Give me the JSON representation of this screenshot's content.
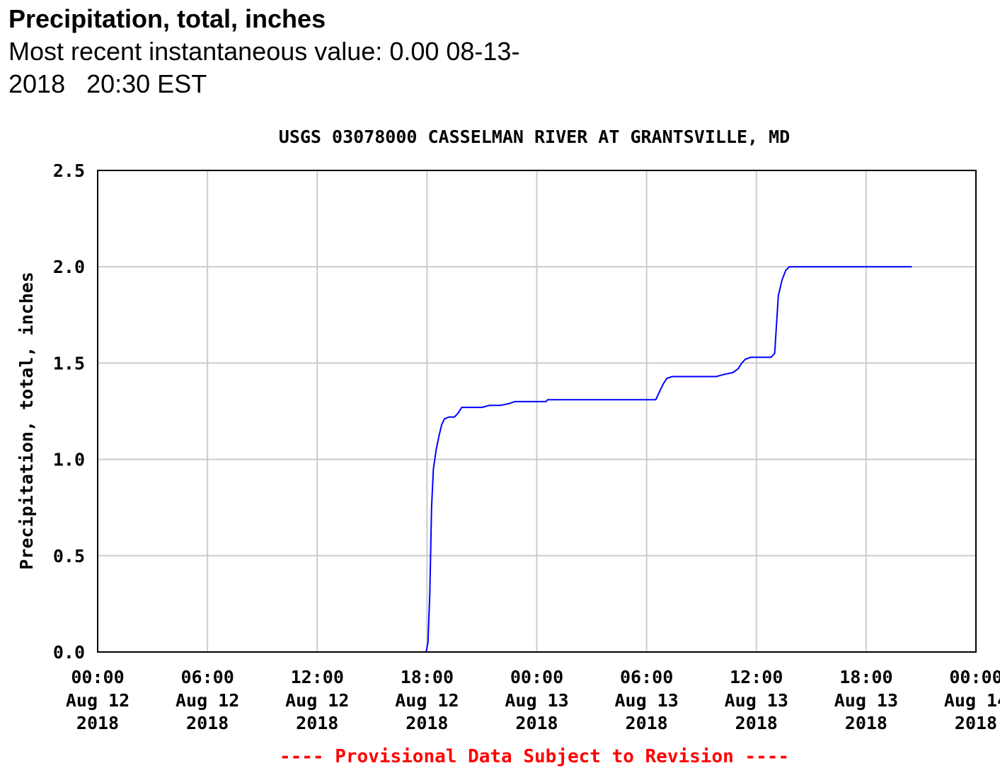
{
  "header": {
    "parameter_title": "Precipitation, total, inches",
    "recent_value_line1": "Most recent instantaneous value: 0.00 08-13-",
    "recent_value_line2": "2018   20:30 EST"
  },
  "chart_data": {
    "type": "line",
    "title": "USGS 03078000 CASSELMAN RIVER AT GRANTSVILLE, MD",
    "ylabel": "Precipitation, total, inches",
    "xlabel": "",
    "ylim": [
      0,
      2.5
    ],
    "xlim_hours": [
      0,
      48
    ],
    "grid": true,
    "footer_note": "---- Provisional Data Subject to Revision ----",
    "y_ticks": [
      {
        "value": 0.0,
        "label": "0.0"
      },
      {
        "value": 0.5,
        "label": "0.5"
      },
      {
        "value": 1.0,
        "label": "1.0"
      },
      {
        "value": 1.5,
        "label": "1.5"
      },
      {
        "value": 2.0,
        "label": "2.0"
      },
      {
        "value": 2.5,
        "label": "2.5"
      }
    ],
    "x_ticks": [
      {
        "hour": 0,
        "time": "00:00",
        "date": "Aug 12",
        "year": "2018"
      },
      {
        "hour": 6,
        "time": "06:00",
        "date": "Aug 12",
        "year": "2018"
      },
      {
        "hour": 12,
        "time": "12:00",
        "date": "Aug 12",
        "year": "2018"
      },
      {
        "hour": 18,
        "time": "18:00",
        "date": "Aug 12",
        "year": "2018"
      },
      {
        "hour": 24,
        "time": "00:00",
        "date": "Aug 13",
        "year": "2018"
      },
      {
        "hour": 30,
        "time": "06:00",
        "date": "Aug 13",
        "year": "2018"
      },
      {
        "hour": 36,
        "time": "12:00",
        "date": "Aug 13",
        "year": "2018"
      },
      {
        "hour": 42,
        "time": "18:00",
        "date": "Aug 13",
        "year": "2018"
      },
      {
        "hour": 48,
        "time": "00:00",
        "date": "Aug 14",
        "year": "2018"
      }
    ],
    "series": [
      {
        "name": "Precipitation, total, inches",
        "color": "#0000ff",
        "points": [
          [
            0,
            0.0
          ],
          [
            17.95,
            0.0
          ],
          [
            18.05,
            0.05
          ],
          [
            18.15,
            0.3
          ],
          [
            18.25,
            0.75
          ],
          [
            18.35,
            0.95
          ],
          [
            18.5,
            1.05
          ],
          [
            18.65,
            1.12
          ],
          [
            18.8,
            1.18
          ],
          [
            18.95,
            1.21
          ],
          [
            19.2,
            1.22
          ],
          [
            19.5,
            1.22
          ],
          [
            19.7,
            1.24
          ],
          [
            19.9,
            1.27
          ],
          [
            20.2,
            1.27
          ],
          [
            21.0,
            1.27
          ],
          [
            21.4,
            1.28
          ],
          [
            22.0,
            1.28
          ],
          [
            22.5,
            1.29
          ],
          [
            22.8,
            1.3
          ],
          [
            24.0,
            1.3
          ],
          [
            24.5,
            1.3
          ],
          [
            24.6,
            1.31
          ],
          [
            30.5,
            1.31
          ],
          [
            30.7,
            1.35
          ],
          [
            30.9,
            1.39
          ],
          [
            31.1,
            1.42
          ],
          [
            31.4,
            1.43
          ],
          [
            33.8,
            1.43
          ],
          [
            34.2,
            1.44
          ],
          [
            34.7,
            1.45
          ],
          [
            35.0,
            1.47
          ],
          [
            35.2,
            1.5
          ],
          [
            35.4,
            1.52
          ],
          [
            35.7,
            1.53
          ],
          [
            36.8,
            1.53
          ],
          [
            37.0,
            1.55
          ],
          [
            37.1,
            1.7
          ],
          [
            37.2,
            1.85
          ],
          [
            37.4,
            1.93
          ],
          [
            37.6,
            1.98
          ],
          [
            37.8,
            2.0
          ],
          [
            44.5,
            2.0
          ]
        ]
      }
    ]
  }
}
